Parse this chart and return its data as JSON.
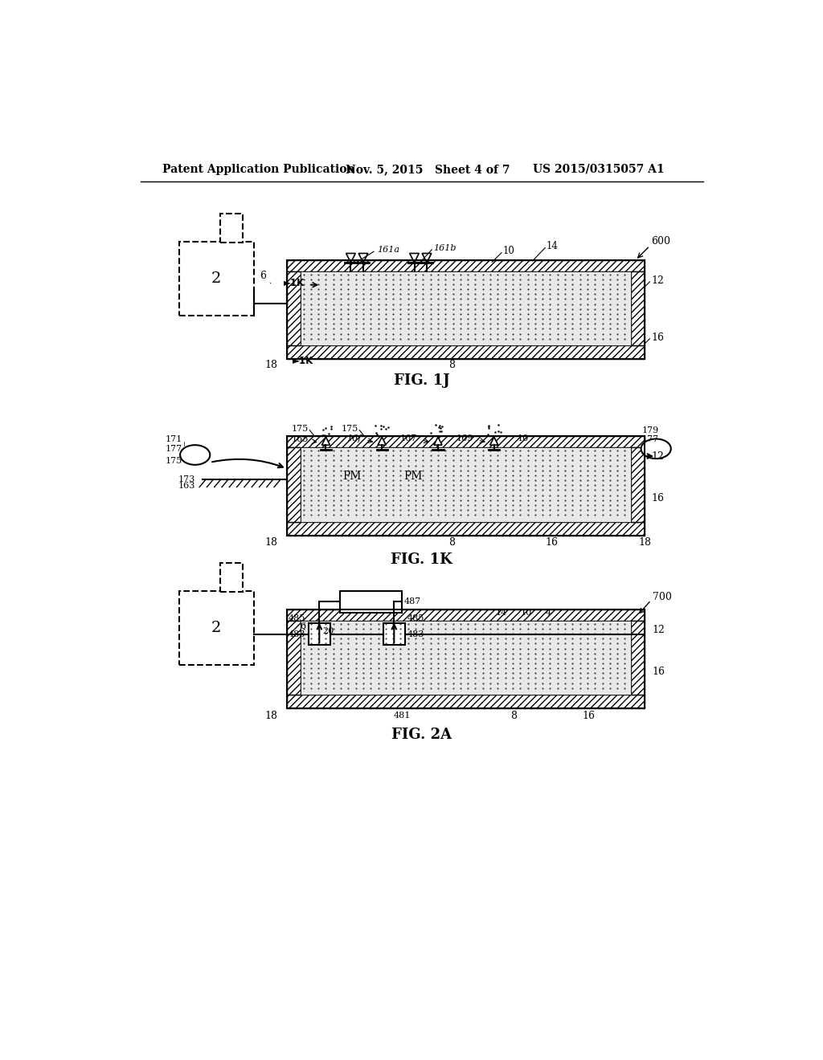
{
  "bg_color": "#ffffff",
  "text_color": "#000000",
  "header_left": "Patent Application Publication",
  "header_mid": "Nov. 5, 2015   Sheet 4 of 7",
  "header_right": "US 2015/0315057 A1",
  "fig1j_label": "FIG. 1J",
  "fig1k_label": "FIG. 1K",
  "fig2a_label": "FIG. 2A"
}
